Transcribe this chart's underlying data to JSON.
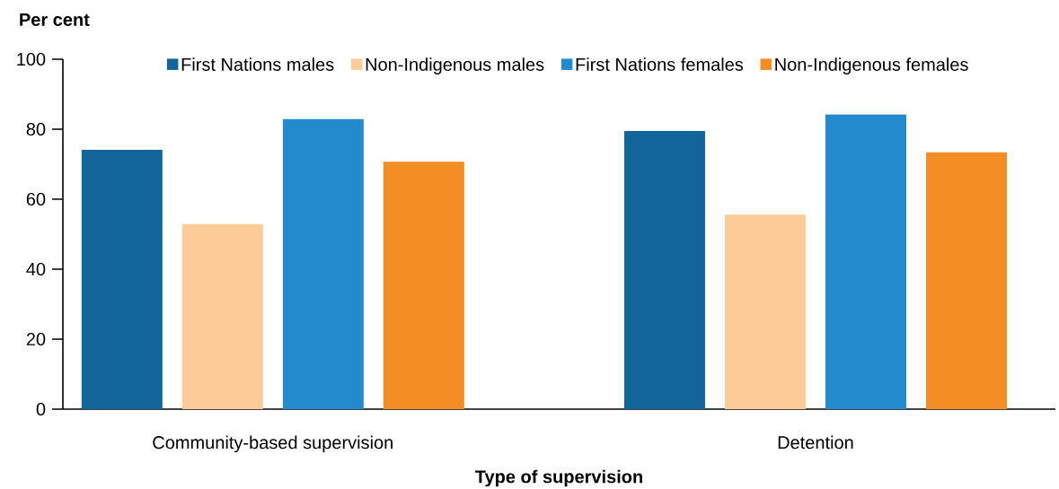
{
  "chart_data": {
    "type": "bar",
    "xlabel": "Type of supervision",
    "ylabel": "Per cent",
    "categories": [
      "Community-based supervision",
      "Detention"
    ],
    "series": [
      {
        "name": "First Nations males",
        "color": "#12659a",
        "values": [
          74.1,
          79.5
        ]
      },
      {
        "name": "Non-Indigenous males",
        "color": "#fdcb98",
        "values": [
          52.9,
          55.6
        ]
      },
      {
        "name": "First Nations females",
        "color": "#238bcd",
        "values": [
          82.9,
          84.2
        ]
      },
      {
        "name": "Non-Indigenous females",
        "color": "#f48d24",
        "values": [
          70.7,
          73.4
        ]
      }
    ],
    "ylim": [
      0,
      100
    ],
    "yticks": [
      0,
      20,
      40,
      60,
      80,
      100
    ],
    "legend": "top"
  }
}
